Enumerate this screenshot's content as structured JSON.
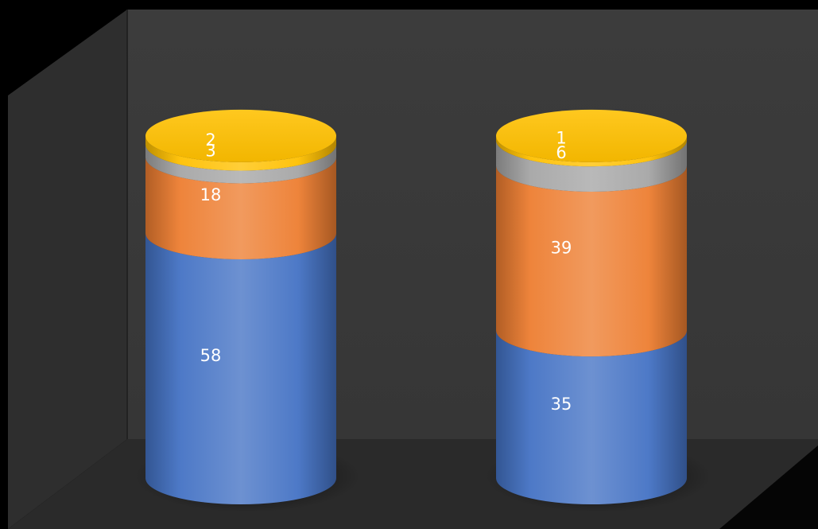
{
  "chart_data": {
    "type": "bar",
    "subtype": "stacked-3d-cylinder",
    "categories": [
      "",
      ""
    ],
    "series": [
      {
        "color": "#4472C4",
        "values": [
          58,
          35
        ]
      },
      {
        "color": "#ED7D31",
        "values": [
          18,
          39
        ]
      },
      {
        "color": "#A5A5A5",
        "values": [
          3,
          6
        ]
      },
      {
        "color": "#FFC000",
        "values": [
          2,
          1
        ]
      }
    ],
    "title": "",
    "xlabel": "",
    "ylabel": "",
    "ylim": [
      0,
      100
    ],
    "grid": false,
    "legend": "none",
    "background": "#000000",
    "wall_color": "#3a3a3a",
    "floor_color": "#2c2c2c"
  }
}
